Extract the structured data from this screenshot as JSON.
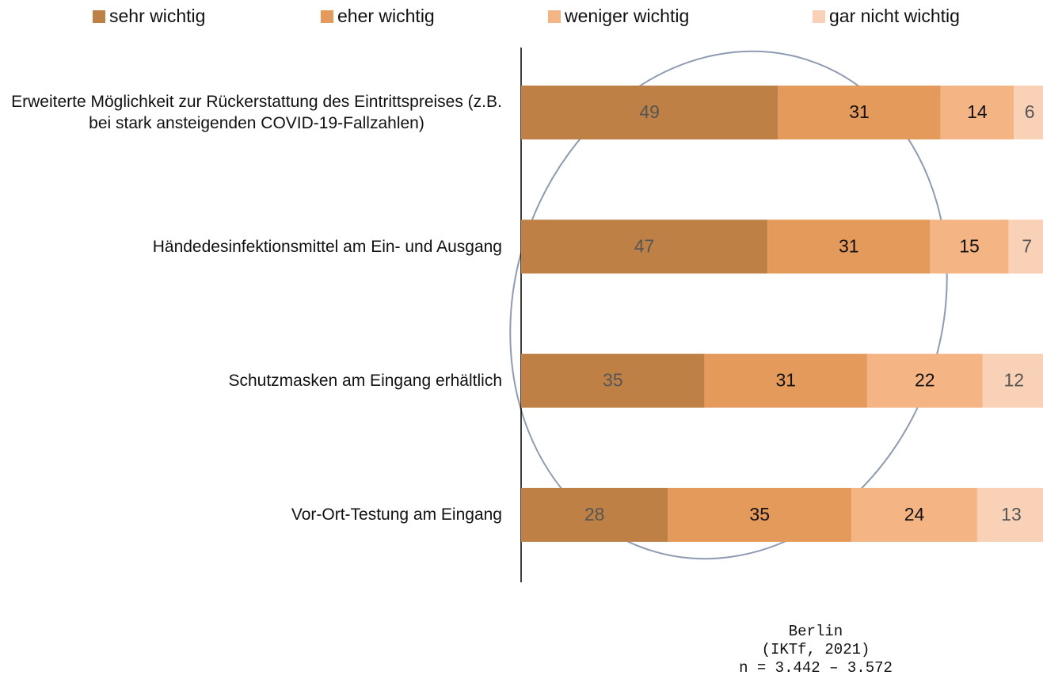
{
  "chart_data": {
    "type": "stacked-barh",
    "categories": [
      "Erweiterte Möglichkeit zur Rückerstattung des Eintrittspreises (z.B. bei stark ansteigenden COVID-19-Fallzahlen)",
      "Händedesinfektionsmittel am Ein- und Ausgang",
      "Schutzmasken am Eingang erhältlich",
      "Vor-Ort-Testung am Eingang"
    ],
    "series": [
      {
        "name": "sehr wichtig",
        "color": "#bf8046",
        "values": [
          49,
          47,
          35,
          28
        ]
      },
      {
        "name": "eher wichtig",
        "color": "#e39a5a",
        "values": [
          31,
          31,
          31,
          35
        ]
      },
      {
        "name": "weniger wichtig",
        "color": "#f4b483",
        "values": [
          14,
          15,
          22,
          24
        ]
      },
      {
        "name": "gar nicht wichtig",
        "color": "#f8d1b6",
        "values": [
          6,
          7,
          12,
          13
        ]
      }
    ],
    "xlim": [
      0,
      100
    ],
    "legend": "top",
    "note": [
      "Berlin",
      "(IKTf, 2021)",
      "n = 3.442 – 3.572"
    ]
  }
}
